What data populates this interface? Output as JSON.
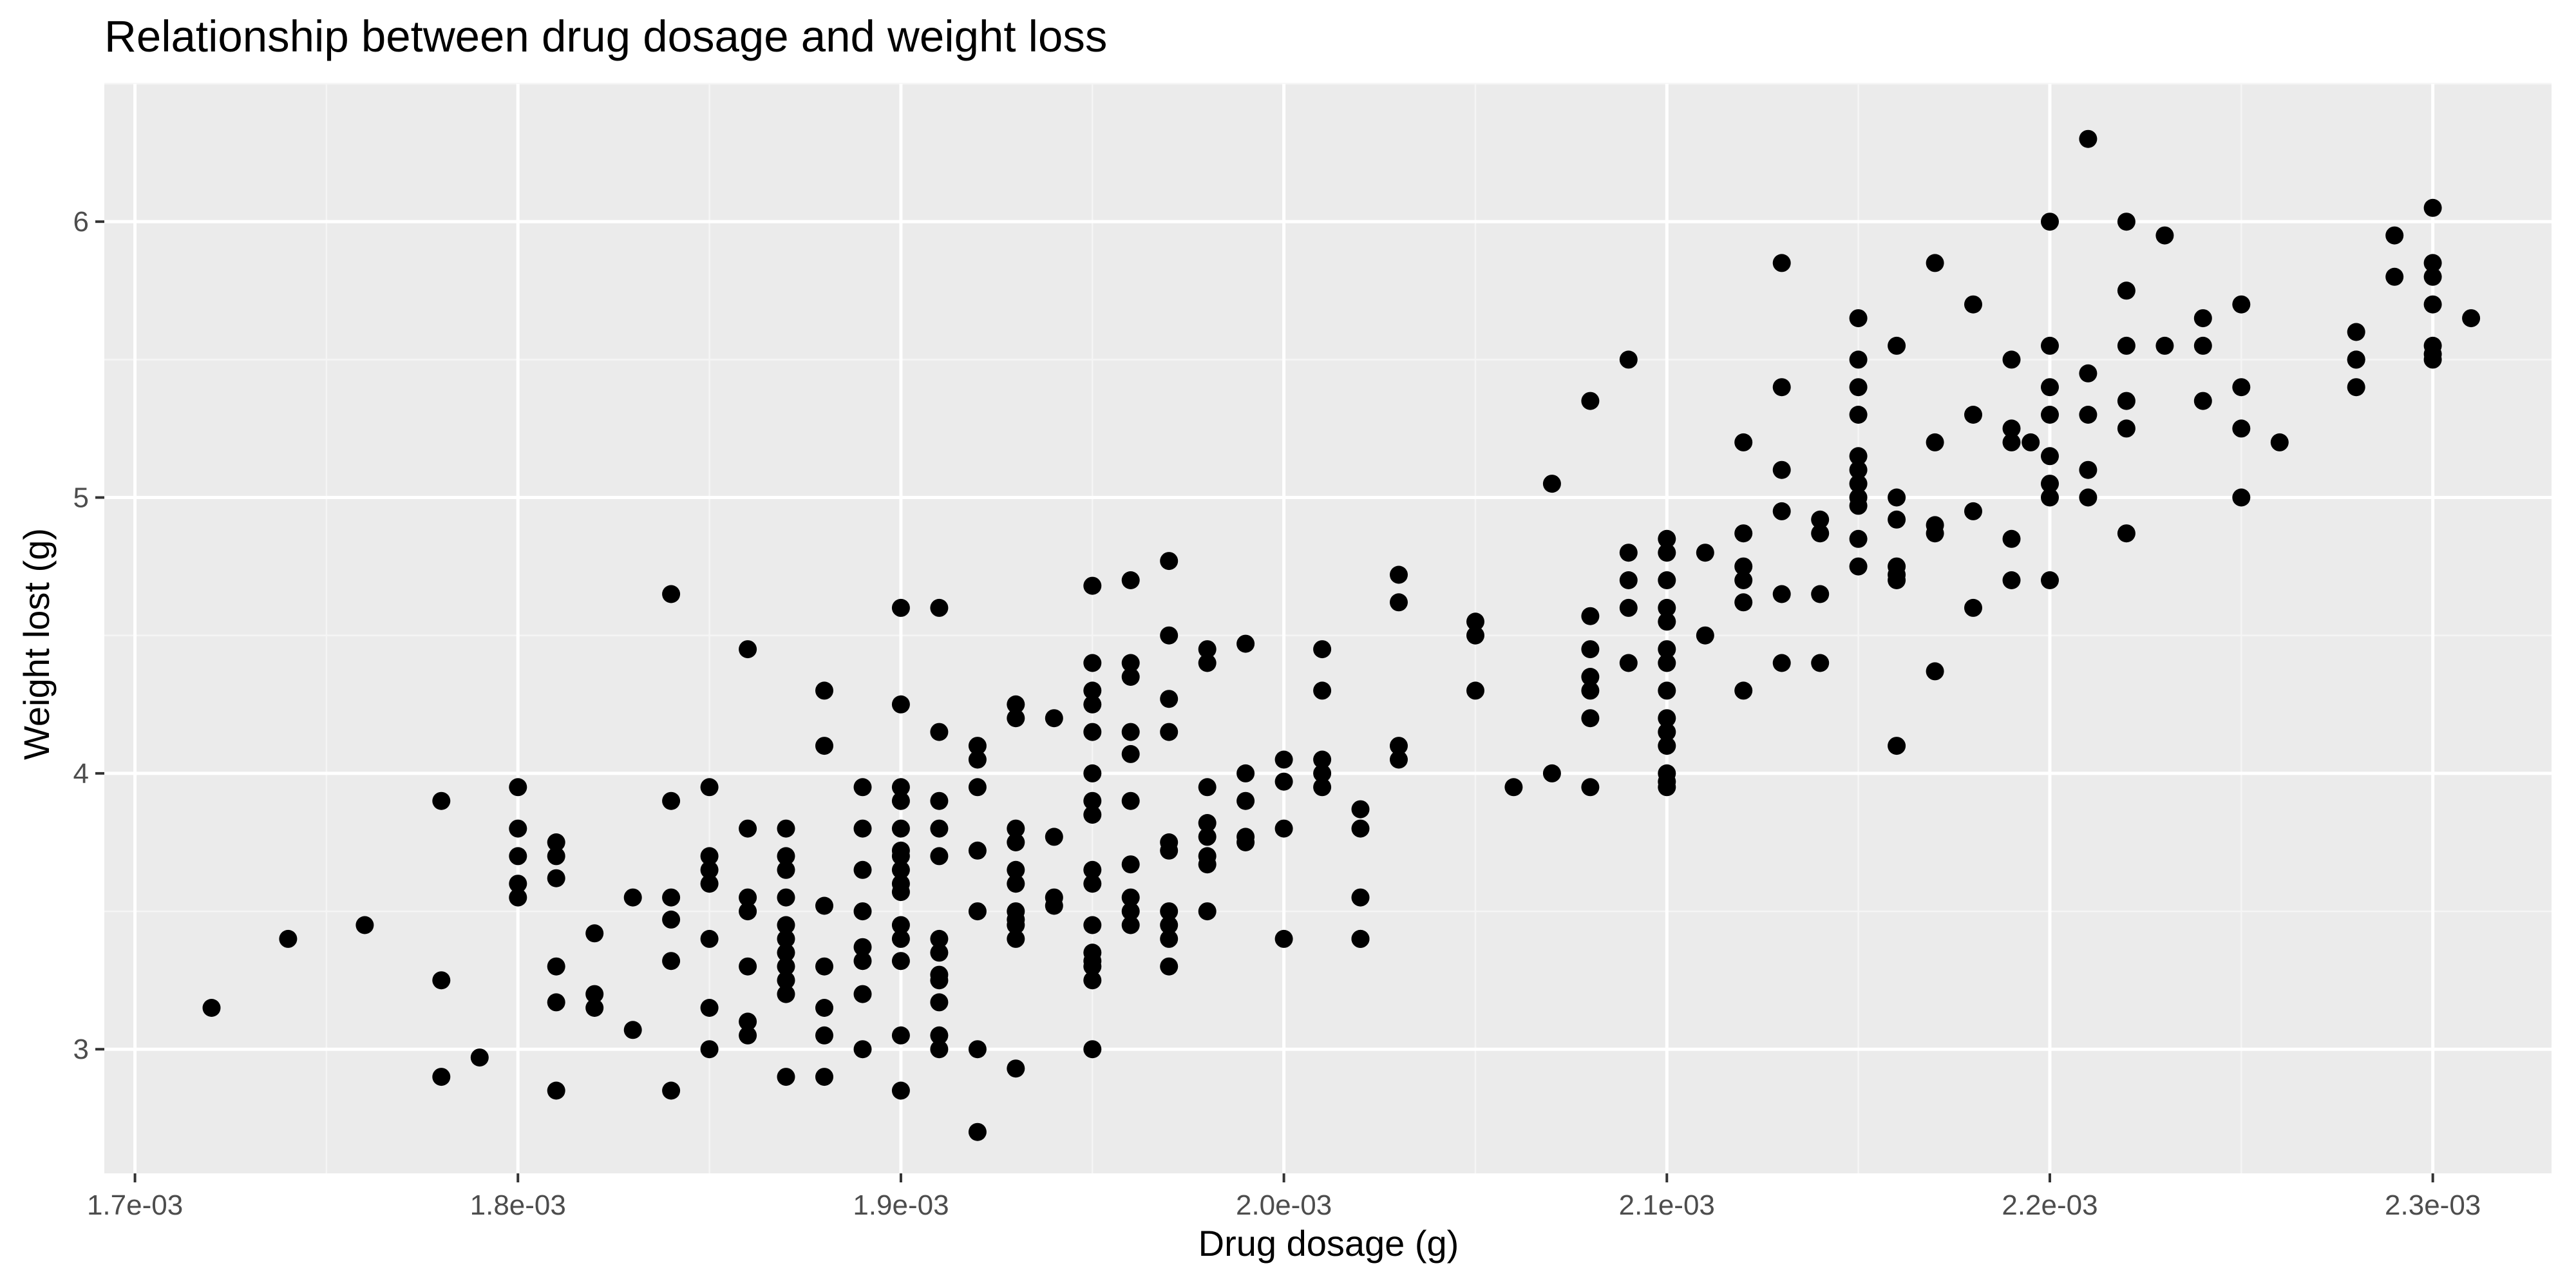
{
  "colors": {
    "panel_background": "#ebebeb",
    "grid_major": "#ffffff",
    "grid_minor": "#f5f5f5",
    "point": "#000000",
    "tick_mark": "#333333",
    "tick_text": "#4d4d4d"
  },
  "chart_data": {
    "type": "scatter",
    "title": "Relationship between drug dosage and weight loss",
    "xlabel": "Drug dosage (g)",
    "ylabel": "Weight lost (g)",
    "xlim": [
      0.001692,
      0.002331
    ],
    "ylim": [
      2.55,
      6.5
    ],
    "x_ticks": [
      0.0017,
      0.0018,
      0.0019,
      0.002,
      0.0021,
      0.0022,
      0.0023
    ],
    "x_tick_labels": [
      "1.7e-03",
      "1.8e-03",
      "1.9e-03",
      "2.0e-03",
      "2.1e-03",
      "2.2e-03",
      "2.3e-03"
    ],
    "y_ticks": [
      3,
      4,
      5,
      6
    ],
    "y_tick_labels": [
      "3",
      "4",
      "5",
      "6"
    ],
    "grid": true,
    "legend": "none",
    "points": {
      "x": [
        0.00172,
        0.00174,
        0.00176,
        0.00178,
        0.00178,
        0.00178,
        0.00179,
        0.0018,
        0.0018,
        0.0018,
        0.0018,
        0.0018,
        0.00181,
        0.00181,
        0.00181,
        0.00181,
        0.00181,
        0.00181,
        0.00182,
        0.00182,
        0.00182,
        0.00183,
        0.00183,
        0.00184,
        0.00184,
        0.00184,
        0.00184,
        0.00184,
        0.00184,
        0.00185,
        0.00185,
        0.00185,
        0.00185,
        0.00185,
        0.00185,
        0.00185,
        0.00186,
        0.00186,
        0.00186,
        0.00186,
        0.00186,
        0.00186,
        0.00186,
        0.00187,
        0.00187,
        0.00187,
        0.00187,
        0.00187,
        0.00187,
        0.00187,
        0.00187,
        0.00187,
        0.00187,
        0.00187,
        0.00188,
        0.00188,
        0.00188,
        0.00188,
        0.00188,
        0.00188,
        0.00188,
        0.00189,
        0.00189,
        0.00189,
        0.00189,
        0.00189,
        0.00189,
        0.00189,
        0.00189,
        0.0019,
        0.0019,
        0.0019,
        0.0019,
        0.0019,
        0.0019,
        0.0019,
        0.0019,
        0.0019,
        0.0019,
        0.0019,
        0.0019,
        0.0019,
        0.0019,
        0.0019,
        0.00191,
        0.00191,
        0.00191,
        0.00191,
        0.00191,
        0.00191,
        0.00191,
        0.00191,
        0.00191,
        0.00191,
        0.00191,
        0.00191,
        0.00192,
        0.00192,
        0.00192,
        0.00192,
        0.00192,
        0.00192,
        0.00192,
        0.00193,
        0.00193,
        0.00193,
        0.00193,
        0.00193,
        0.00193,
        0.00193,
        0.00193,
        0.00193,
        0.00193,
        0.00193,
        0.00194,
        0.00194,
        0.00194,
        0.00194,
        0.00195,
        0.00195,
        0.00195,
        0.00195,
        0.00195,
        0.00195,
        0.00195,
        0.00195,
        0.00195,
        0.00195,
        0.00195,
        0.00195,
        0.00195,
        0.00195,
        0.00195,
        0.00195,
        0.00196,
        0.00196,
        0.00196,
        0.00196,
        0.00196,
        0.00196,
        0.00196,
        0.00196,
        0.00196,
        0.00196,
        0.00197,
        0.00197,
        0.00197,
        0.00197,
        0.00197,
        0.00197,
        0.00197,
        0.00197,
        0.00197,
        0.00197,
        0.00198,
        0.00198,
        0.00198,
        0.00198,
        0.00198,
        0.00198,
        0.00198,
        0.00198,
        0.00199,
        0.00199,
        0.00199,
        0.00199,
        0.00199,
        0.002,
        0.002,
        0.002,
        0.002,
        0.00201,
        0.00201,
        0.00201,
        0.00201,
        0.00201,
        0.00202,
        0.00202,
        0.00202,
        0.00202,
        0.00202,
        0.00203,
        0.00203,
        0.00203,
        0.00203,
        0.00205,
        0.00205,
        0.00205,
        0.00206,
        0.00207,
        0.00207,
        0.00208,
        0.00208,
        0.00208,
        0.00208,
        0.00208,
        0.00208,
        0.00208,
        0.00209,
        0.00209,
        0.00209,
        0.00209,
        0.00209,
        0.0021,
        0.0021,
        0.0021,
        0.0021,
        0.0021,
        0.0021,
        0.0021,
        0.0021,
        0.0021,
        0.0021,
        0.0021,
        0.0021,
        0.0021,
        0.0021,
        0.00211,
        0.00211,
        0.00212,
        0.00212,
        0.00212,
        0.00212,
        0.00212,
        0.00212,
        0.00213,
        0.00213,
        0.00213,
        0.00213,
        0.00213,
        0.00213,
        0.00214,
        0.00214,
        0.00214,
        0.00214,
        0.00215,
        0.00215,
        0.00215,
        0.00215,
        0.00215,
        0.00215,
        0.00215,
        0.00215,
        0.00215,
        0.00215,
        0.00215,
        0.00216,
        0.00216,
        0.00216,
        0.00216,
        0.00216,
        0.00216,
        0.00216,
        0.00217,
        0.00217,
        0.00217,
        0.00217,
        0.00217,
        0.00218,
        0.00218,
        0.00218,
        0.00218,
        0.00219,
        0.00219,
        0.00219,
        0.00219,
        0.00219,
        0.002195,
        0.0022,
        0.0022,
        0.0022,
        0.0022,
        0.0022,
        0.0022,
        0.0022,
        0.0022,
        0.00221,
        0.00221,
        0.00221,
        0.00221,
        0.00221,
        0.00222,
        0.00222,
        0.00222,
        0.00222,
        0.00222,
        0.00222,
        0.00223,
        0.00223,
        0.00224,
        0.00224,
        0.00224,
        0.00225,
        0.00225,
        0.00225,
        0.00225,
        0.00226,
        0.00228,
        0.00228,
        0.00228,
        0.00228,
        0.00229,
        0.00229,
        0.0023,
        0.0023,
        0.0023,
        0.0023,
        0.0023,
        0.0023,
        0.0023,
        0.00231
      ],
      "y": [
        3.15,
        3.4,
        3.45,
        3.9,
        3.25,
        2.9,
        2.97,
        3.95,
        3.8,
        3.7,
        3.6,
        3.55,
        3.75,
        3.7,
        3.62,
        3.3,
        3.17,
        2.85,
        3.42,
        3.2,
        3.15,
        3.55,
        3.07,
        4.65,
        3.9,
        3.55,
        3.47,
        3.32,
        2.85,
        3.95,
        3.7,
        3.65,
        3.6,
        3.4,
        3.15,
        3.0,
        4.45,
        3.8,
        3.55,
        3.5,
        3.3,
        3.1,
        3.05,
        3.8,
        3.7,
        3.65,
        3.55,
        3.45,
        3.4,
        3.35,
        3.3,
        3.25,
        3.2,
        2.9,
        4.3,
        4.1,
        3.52,
        3.3,
        3.15,
        3.05,
        2.9,
        3.95,
        3.8,
        3.65,
        3.5,
        3.37,
        3.32,
        3.2,
        3.0,
        4.6,
        4.25,
        3.95,
        3.9,
        3.8,
        3.72,
        3.7,
        3.65,
        3.6,
        3.57,
        3.45,
        3.4,
        3.32,
        3.05,
        2.85,
        4.6,
        4.15,
        3.9,
        3.8,
        3.7,
        3.4,
        3.35,
        3.27,
        3.25,
        3.17,
        3.05,
        3.0,
        4.1,
        4.05,
        3.95,
        3.72,
        3.5,
        3.0,
        2.7,
        4.25,
        4.2,
        3.8,
        3.75,
        3.65,
        3.6,
        3.5,
        3.47,
        3.45,
        3.4,
        2.93,
        4.2,
        3.77,
        3.55,
        3.52,
        4.68,
        4.4,
        4.3,
        4.25,
        4.15,
        4.0,
        3.9,
        3.85,
        3.65,
        3.6,
        3.45,
        3.35,
        3.32,
        3.3,
        3.25,
        3.0,
        4.7,
        4.4,
        4.35,
        4.15,
        4.07,
        3.9,
        3.67,
        3.55,
        3.5,
        3.45,
        4.77,
        4.5,
        4.27,
        4.15,
        3.75,
        3.72,
        3.5,
        3.45,
        3.4,
        3.3,
        4.45,
        4.4,
        3.95,
        3.82,
        3.77,
        3.7,
        3.67,
        3.5,
        4.47,
        4.0,
        3.9,
        3.77,
        3.75,
        4.05,
        3.97,
        3.8,
        3.4,
        4.45,
        4.3,
        4.05,
        4.0,
        3.95,
        3.87,
        3.8,
        3.55,
        3.4,
        3.4,
        4.72,
        4.62,
        4.1,
        4.05,
        4.55,
        4.5,
        4.3,
        3.95,
        5.05,
        4.0,
        5.35,
        4.57,
        4.45,
        4.35,
        4.3,
        4.2,
        3.95,
        5.5,
        4.8,
        4.7,
        4.6,
        4.4,
        4.85,
        4.8,
        4.7,
        4.6,
        4.55,
        4.45,
        4.4,
        4.3,
        4.2,
        4.15,
        4.1,
        4.0,
        3.97,
        3.95,
        4.8,
        4.5,
        5.2,
        4.87,
        4.75,
        4.7,
        4.62,
        4.3,
        5.85,
        5.4,
        5.1,
        4.95,
        4.65,
        4.4,
        4.92,
        4.87,
        4.65,
        4.4,
        5.65,
        5.5,
        5.4,
        5.3,
        5.15,
        5.1,
        5.05,
        5.0,
        4.97,
        4.85,
        4.75,
        5.55,
        5.0,
        4.92,
        4.75,
        4.72,
        4.7,
        4.1,
        5.85,
        5.2,
        4.9,
        4.87,
        4.37,
        5.7,
        5.3,
        4.95,
        4.6,
        5.5,
        5.25,
        5.2,
        4.85,
        4.7,
        5.2,
        6.0,
        5.55,
        5.4,
        5.3,
        5.15,
        5.05,
        5.0,
        4.7,
        6.3,
        5.45,
        5.3,
        5.1,
        5.0,
        6.0,
        5.75,
        5.55,
        5.35,
        5.25,
        4.87,
        5.95,
        5.55,
        5.65,
        5.55,
        5.35,
        5.7,
        5.4,
        5.25,
        5.0,
        5.2,
        5.6,
        5.5,
        5.5,
        5.4,
        5.95,
        5.8,
        6.05,
        5.85,
        5.8,
        5.7,
        5.55,
        5.52,
        5.5,
        5.65
      ]
    }
  }
}
